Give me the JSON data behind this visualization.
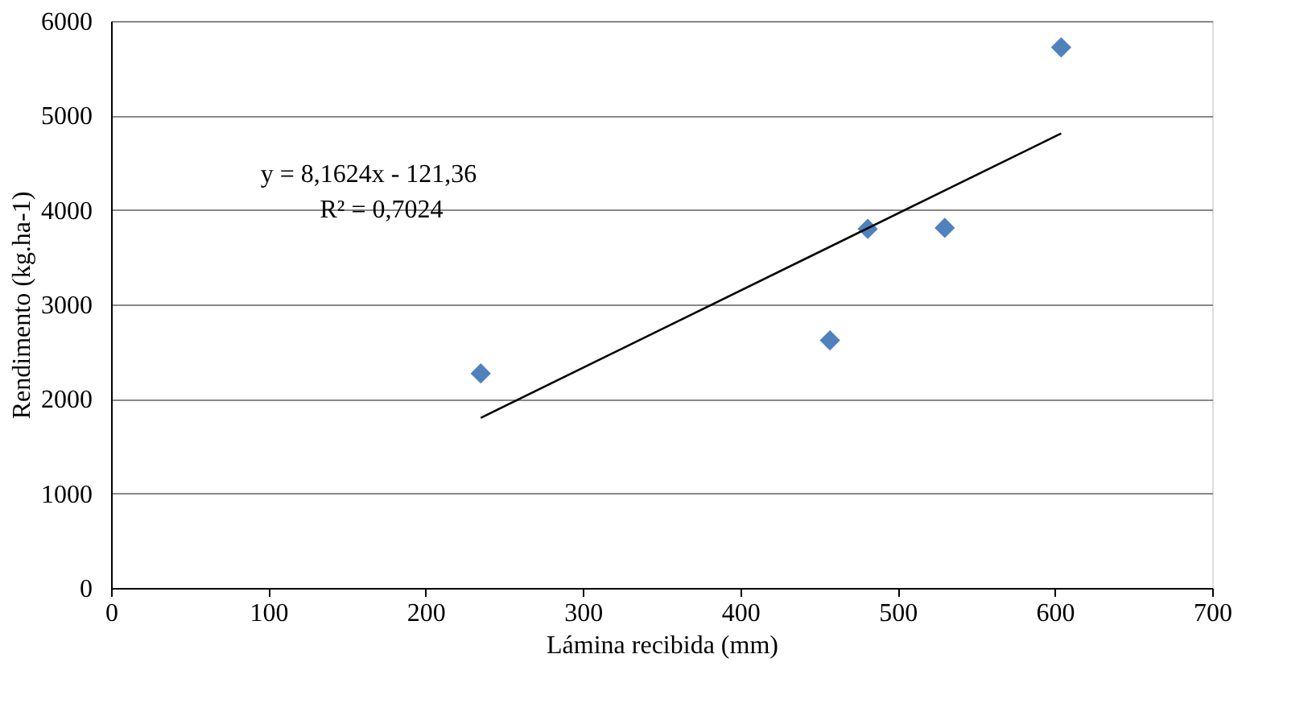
{
  "chart_data": {
    "type": "scatter",
    "xlabel": "Lámina recibida (mm)",
    "ylabel": "Rendimento (kg.ha-1)",
    "x": [
      235,
      457,
      481,
      530,
      604
    ],
    "series": [
      {
        "color": "#4f81bd",
        "marker": "diamond",
        "values": [
          2270,
          2620,
          3800,
          3810,
          5720
        ]
      },
      {
        "type": "line",
        "color": "#000000",
        "x": [
          235,
          604
        ],
        "values": [
          1800,
          4810
        ],
        "line_style": "solid"
      }
    ],
    "xlim": [
      0,
      700
    ],
    "xticks": [
      0,
      100,
      200,
      300,
      400,
      500,
      600,
      700
    ],
    "ylim": [
      0,
      6000
    ],
    "yticks": [
      0,
      1000,
      2000,
      3000,
      4000,
      5000,
      6000
    ],
    "grid": "y",
    "annotations": [
      "y = 8,1624x - 121,36",
      "R² = 0,7024"
    ]
  }
}
